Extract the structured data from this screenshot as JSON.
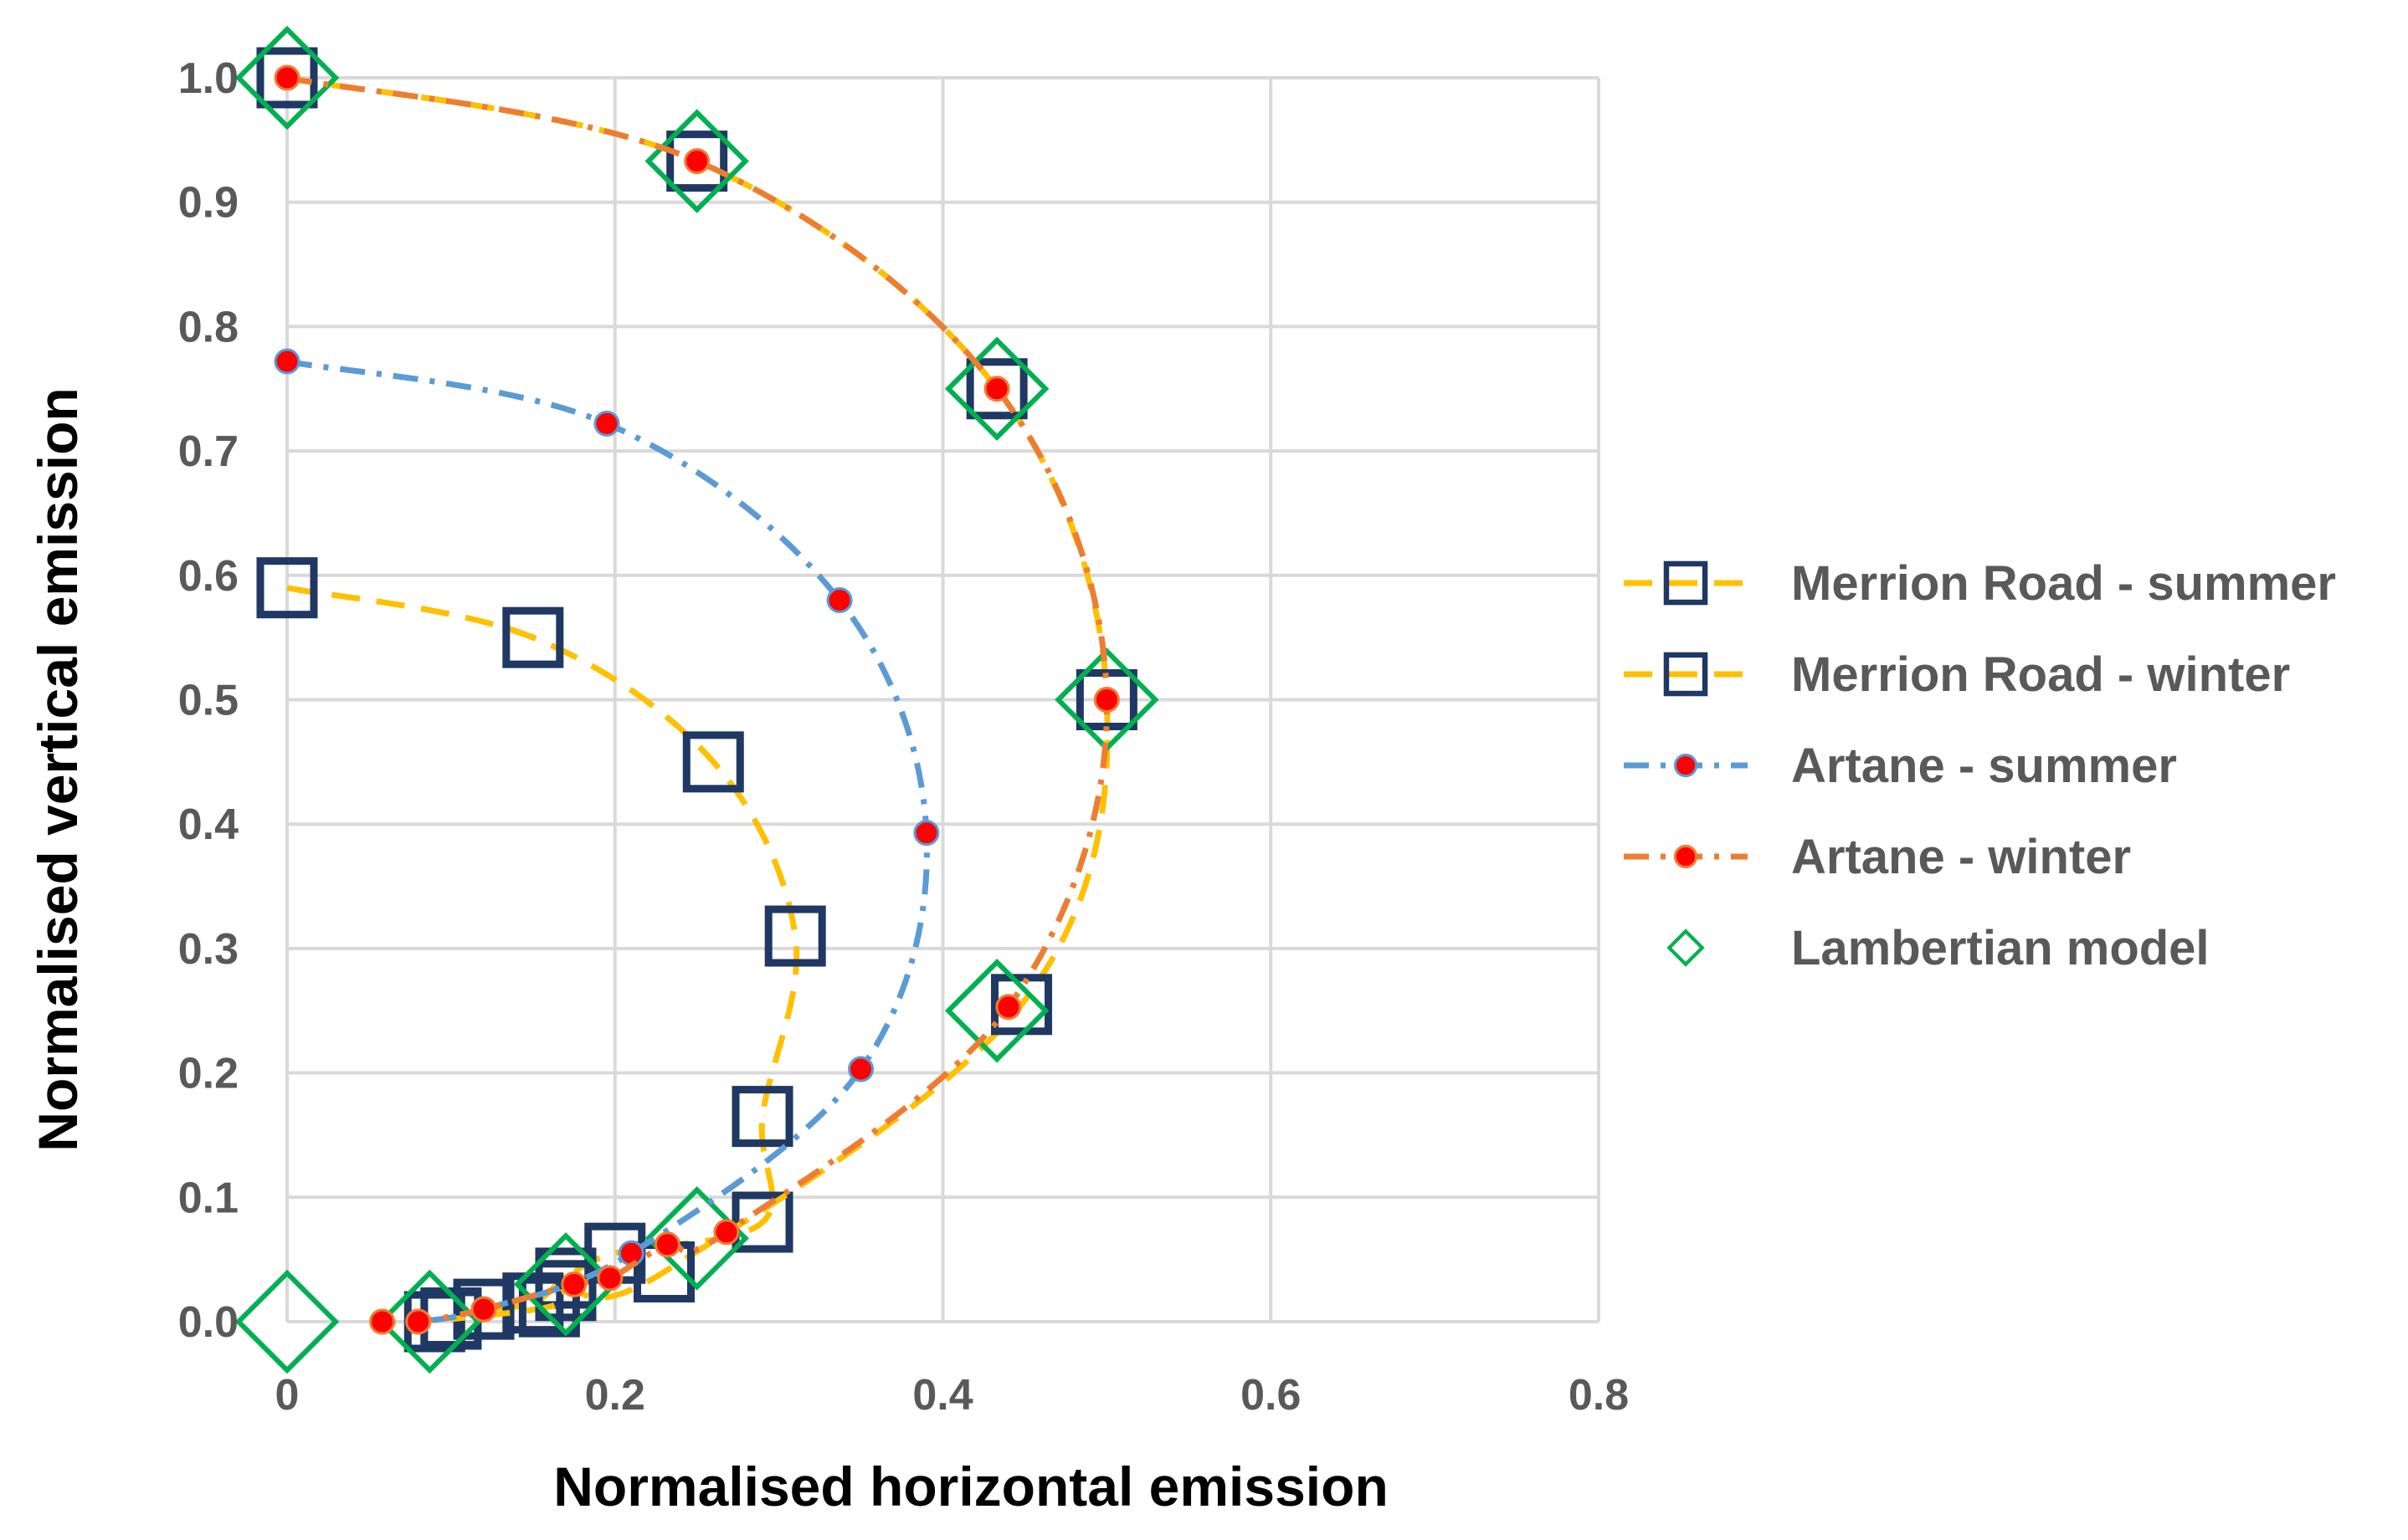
{
  "chart_data": {
    "type": "scatter",
    "title": "",
    "xlabel": "Normalised horizontal emission",
    "ylabel": "Normalised vertical emission",
    "xlim": [
      0,
      0.8
    ],
    "ylim": [
      0,
      1.0
    ],
    "x_ticks": [
      0,
      0.2,
      0.4,
      0.6,
      0.8
    ],
    "x_tick_labels": [
      "0",
      "0.2",
      "0.4",
      "0.6",
      "0.8"
    ],
    "y_ticks": [
      0,
      0.1,
      0.2,
      0.3,
      0.4,
      0.5,
      0.6,
      0.7,
      0.8,
      0.9,
      1.0
    ],
    "y_tick_labels": [
      "0.0",
      "0.1",
      "0.2",
      "0.3",
      "0.4",
      "0.5",
      "0.6",
      "0.7",
      "0.8",
      "0.9",
      "1.0"
    ],
    "grid": true,
    "legend_position": "right",
    "series": [
      {
        "name": "Merrion Road - summer",
        "line_color": "#ffc000",
        "line_style": "dash",
        "marker": "square",
        "marker_color": "#1f3864",
        "marker_fill": "none",
        "draw_markers": true,
        "x": [
          0.0,
          0.15,
          0.26,
          0.31,
          0.29,
          0.29,
          0.2,
          0.17,
          0.15,
          0.12,
          0.1,
          0.09
        ],
        "y": [
          0.59,
          0.55,
          0.45,
          0.31,
          0.165,
          0.08,
          0.055,
          0.035,
          0.015,
          0.01,
          0.003,
          0.0
        ]
      },
      {
        "name": "Merrion Road - winter",
        "line_color": "#ffc000",
        "line_style": "dash",
        "marker": "square",
        "marker_color": "#1f3864",
        "marker_fill": "none",
        "draw_markers": true,
        "x": [
          0.0,
          0.25,
          0.433,
          0.5,
          0.448,
          0.23,
          0.17,
          0.16,
          0.1
        ],
        "y": [
          1.0,
          0.933,
          0.75,
          0.5,
          0.255,
          0.04,
          0.025,
          0.012,
          0.002
        ]
      },
      {
        "name": "Artane - summer",
        "line_color": "#5b9bd5",
        "line_style": "dashdot",
        "marker": "circle",
        "marker_color": "#5b9bd5",
        "marker_fill": "#ff0000",
        "draw_markers": true,
        "x": [
          0.0,
          0.195,
          0.337,
          0.39,
          0.35,
          0.21,
          0.12,
          0.08
        ],
        "y": [
          0.772,
          0.722,
          0.58,
          0.393,
          0.203,
          0.055,
          0.01,
          0.0
        ]
      },
      {
        "name": "Artane - winter",
        "line_color": "#ed7d31",
        "line_style": "dashdot",
        "marker": "circle",
        "marker_color": "#ed7d31",
        "marker_fill": "#ff0000",
        "draw_markers": true,
        "x": [
          0.0,
          0.25,
          0.433,
          0.5,
          0.44,
          0.268,
          0.232,
          0.197,
          0.175,
          0.12,
          0.08,
          0.058
        ],
        "y": [
          1.0,
          0.933,
          0.75,
          0.5,
          0.253,
          0.072,
          0.062,
          0.035,
          0.03,
          0.01,
          0.0,
          0.0
        ]
      },
      {
        "name": "Lambertian model",
        "line_color": "none",
        "line_style": "none",
        "marker": "diamond",
        "marker_color": "#00b050",
        "marker_fill": "none",
        "draw_markers": true,
        "x": [
          0.0,
          0.25,
          0.433,
          0.5,
          0.433,
          0.25,
          0.17,
          0.087,
          0.0
        ],
        "y": [
          1.0,
          0.933,
          0.75,
          0.5,
          0.25,
          0.067,
          0.03,
          0.0,
          0.0
        ]
      }
    ],
    "legend_order": [
      0,
      1,
      2,
      3,
      4
    ]
  }
}
